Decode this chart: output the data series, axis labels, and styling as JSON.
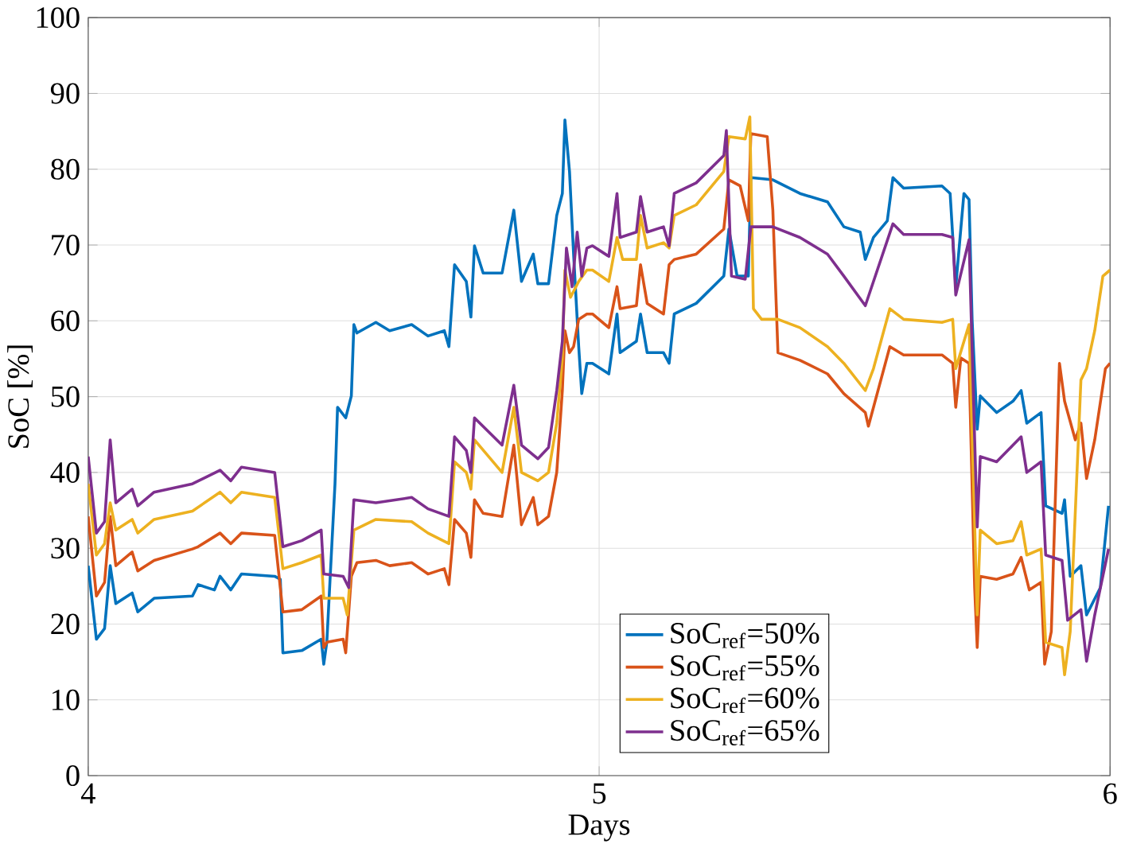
{
  "chart_data": {
    "type": "line",
    "xlabel": "Days",
    "ylabel": "SoC [%]",
    "xlim": [
      4,
      6
    ],
    "ylim": [
      0,
      100
    ],
    "xticks": [
      4,
      5,
      6
    ],
    "yticks": [
      0,
      10,
      20,
      30,
      40,
      50,
      60,
      70,
      80,
      90,
      100
    ],
    "grid": true,
    "legend": "bottom right",
    "line_style": "solid",
    "marker": "none",
    "series": [
      {
        "name": "SoC$_{ref}$=50%",
        "color": "#0072bd",
        "x": [
          4.0,
          4.016,
          4.032,
          4.043,
          4.054,
          4.086,
          4.097,
          4.129,
          4.204,
          4.215,
          4.247,
          4.258,
          4.279,
          4.3,
          4.365,
          4.376,
          4.381,
          4.418,
          4.456,
          4.461,
          4.467,
          4.483,
          4.488,
          4.504,
          4.515,
          4.52,
          4.526,
          4.563,
          4.59,
          4.633,
          4.665,
          4.697,
          4.706,
          4.717,
          4.74,
          4.749,
          4.756,
          4.773,
          4.81,
          4.833,
          4.848,
          4.871,
          4.88,
          4.901,
          4.917,
          4.928,
          4.933,
          4.942,
          4.95,
          4.96,
          4.966,
          4.976,
          4.987,
          5.019,
          5.035,
          5.041,
          5.073,
          5.081,
          5.094,
          5.126,
          5.137,
          5.147,
          5.19,
          5.244,
          5.254,
          5.27,
          5.292,
          5.297,
          5.34,
          5.393,
          5.447,
          5.479,
          5.511,
          5.521,
          5.537,
          5.564,
          5.575,
          5.596,
          5.671,
          5.687,
          5.698,
          5.714,
          5.724,
          5.73,
          5.74,
          5.746,
          5.778,
          5.81,
          5.826,
          5.837,
          5.865,
          5.874,
          5.906,
          5.911,
          5.922,
          5.943,
          5.954,
          5.981,
          5.997
        ],
        "values": [
          27.7,
          18.0,
          19.4,
          27.7,
          22.7,
          24.1,
          21.6,
          23.4,
          23.7,
          25.2,
          24.5,
          26.3,
          24.5,
          26.6,
          26.3,
          25.9,
          16.2,
          16.5,
          18.0,
          14.7,
          17.6,
          38.5,
          48.6,
          47.2,
          50.1,
          59.5,
          58.4,
          59.8,
          58.7,
          59.5,
          58.0,
          58.7,
          56.6,
          67.4,
          65.2,
          60.5,
          69.9,
          66.3,
          66.3,
          74.6,
          65.2,
          68.8,
          64.9,
          64.9,
          73.9,
          76.8,
          86.5,
          79.7,
          68.8,
          56.6,
          50.4,
          54.4,
          54.4,
          53.0,
          60.9,
          55.8,
          57.3,
          60.9,
          55.8,
          55.8,
          54.4,
          60.9,
          62.3,
          65.9,
          72.1,
          65.9,
          65.9,
          78.9,
          78.6,
          76.8,
          75.7,
          72.4,
          71.7,
          68.1,
          71.0,
          73.2,
          78.9,
          77.5,
          77.8,
          76.8,
          64.5,
          76.8,
          76.0,
          60.2,
          45.7,
          50.1,
          47.9,
          49.4,
          50.8,
          46.5,
          47.9,
          35.6,
          34.6,
          36.4,
          26.3,
          27.7,
          21.2,
          24.8,
          35.6
        ]
      },
      {
        "name": "SoC$_{ref}$=55%",
        "color": "#d95319",
        "x": [
          4.0,
          4.016,
          4.032,
          4.043,
          4.054,
          4.086,
          4.097,
          4.129,
          4.204,
          4.215,
          4.258,
          4.279,
          4.3,
          4.365,
          4.381,
          4.418,
          4.456,
          4.461,
          4.467,
          4.499,
          4.504,
          4.515,
          4.526,
          4.563,
          4.59,
          4.633,
          4.665,
          4.697,
          4.706,
          4.717,
          4.74,
          4.749,
          4.756,
          4.773,
          4.81,
          4.833,
          4.848,
          4.871,
          4.88,
          4.901,
          4.917,
          4.928,
          4.933,
          4.942,
          4.95,
          4.96,
          4.976,
          4.987,
          5.019,
          5.035,
          5.041,
          5.073,
          5.081,
          5.094,
          5.126,
          5.137,
          5.147,
          5.19,
          5.244,
          5.254,
          5.276,
          5.292,
          5.297,
          5.329,
          5.34,
          5.35,
          5.393,
          5.447,
          5.479,
          5.521,
          5.527,
          5.537,
          5.569,
          5.596,
          5.671,
          5.692,
          5.698,
          5.708,
          5.724,
          5.735,
          5.74,
          5.746,
          5.778,
          5.81,
          5.826,
          5.842,
          5.865,
          5.872,
          5.885,
          5.901,
          5.911,
          5.932,
          5.943,
          5.954,
          5.97,
          5.991,
          6.0
        ],
        "values": [
          34.2,
          23.7,
          25.5,
          34.2,
          27.7,
          29.5,
          27.0,
          28.4,
          29.9,
          30.2,
          32.0,
          30.6,
          32.0,
          31.7,
          21.6,
          21.9,
          23.7,
          16.9,
          17.6,
          18.0,
          16.2,
          26.3,
          28.1,
          28.4,
          27.7,
          28.1,
          26.6,
          27.3,
          25.2,
          33.8,
          32.0,
          28.8,
          36.4,
          34.6,
          34.2,
          43.6,
          33.1,
          36.7,
          33.1,
          34.2,
          40.0,
          50.8,
          58.7,
          55.8,
          56.6,
          60.2,
          60.9,
          60.9,
          59.1,
          64.5,
          61.6,
          62.0,
          67.4,
          62.3,
          60.9,
          67.4,
          68.1,
          68.8,
          72.1,
          78.6,
          77.8,
          73.2,
          84.7,
          84.3,
          74.6,
          55.8,
          54.8,
          53.0,
          50.4,
          47.9,
          46.1,
          48.6,
          56.6,
          55.5,
          55.5,
          54.4,
          48.6,
          55.1,
          54.4,
          24.8,
          16.9,
          26.3,
          25.9,
          26.6,
          28.8,
          24.5,
          25.5,
          14.7,
          19.0,
          54.4,
          49.4,
          44.3,
          46.5,
          39.2,
          44.3,
          53.7,
          54.4
        ]
      },
      {
        "name": "SoC$_{ref}$=60%",
        "color": "#edb120",
        "x": [
          4.0,
          4.016,
          4.032,
          4.043,
          4.054,
          4.086,
          4.097,
          4.129,
          4.204,
          4.258,
          4.279,
          4.3,
          4.365,
          4.381,
          4.418,
          4.456,
          4.461,
          4.499,
          4.507,
          4.52,
          4.563,
          4.633,
          4.665,
          4.706,
          4.717,
          4.74,
          4.749,
          4.756,
          4.81,
          4.833,
          4.848,
          4.88,
          4.901,
          4.917,
          4.928,
          4.933,
          4.944,
          4.96,
          4.976,
          4.987,
          5.019,
          5.035,
          5.046,
          5.073,
          5.081,
          5.094,
          5.126,
          5.137,
          5.147,
          5.19,
          5.244,
          5.254,
          5.286,
          5.295,
          5.302,
          5.318,
          5.35,
          5.393,
          5.447,
          5.479,
          5.521,
          5.537,
          5.569,
          5.596,
          5.671,
          5.692,
          5.698,
          5.724,
          5.74,
          5.746,
          5.778,
          5.81,
          5.826,
          5.837,
          5.865,
          5.874,
          5.906,
          5.911,
          5.922,
          5.943,
          5.954,
          5.97,
          5.986,
          6.0
        ],
        "values": [
          38.5,
          29.1,
          30.6,
          36.0,
          32.4,
          33.8,
          32.0,
          33.8,
          34.9,
          37.4,
          36.0,
          37.4,
          36.7,
          27.3,
          28.1,
          29.1,
          23.4,
          23.4,
          21.2,
          32.4,
          33.8,
          33.5,
          32.0,
          30.6,
          41.4,
          40.0,
          37.8,
          44.3,
          40.0,
          48.6,
          40.0,
          38.9,
          40.0,
          46.5,
          55.1,
          66.7,
          63.1,
          65.2,
          66.7,
          66.7,
          65.2,
          71.0,
          68.1,
          68.1,
          73.9,
          69.6,
          70.3,
          69.6,
          73.9,
          75.3,
          79.7,
          84.3,
          84.0,
          86.9,
          61.6,
          60.2,
          60.2,
          59.1,
          56.6,
          54.4,
          50.8,
          53.7,
          61.6,
          60.2,
          59.8,
          60.2,
          53.7,
          59.5,
          21.2,
          32.4,
          30.6,
          31.0,
          33.5,
          29.1,
          29.9,
          17.6,
          16.9,
          13.3,
          19.0,
          52.2,
          53.7,
          58.7,
          65.9,
          66.7
        ]
      },
      {
        "name": "SoC$_{ref}$=65%",
        "color": "#7e2f8e",
        "x": [
          4.0,
          4.016,
          4.032,
          4.043,
          4.054,
          4.086,
          4.097,
          4.129,
          4.204,
          4.258,
          4.279,
          4.3,
          4.365,
          4.381,
          4.418,
          4.456,
          4.461,
          4.499,
          4.51,
          4.52,
          4.563,
          4.633,
          4.665,
          4.706,
          4.717,
          4.74,
          4.749,
          4.756,
          4.81,
          4.833,
          4.848,
          4.88,
          4.901,
          4.917,
          4.928,
          4.936,
          4.947,
          4.957,
          4.966,
          4.976,
          4.987,
          5.019,
          5.035,
          5.041,
          5.073,
          5.081,
          5.094,
          5.126,
          5.137,
          5.147,
          5.19,
          5.244,
          5.249,
          5.259,
          5.286,
          5.297,
          5.34,
          5.393,
          5.447,
          5.479,
          5.521,
          5.537,
          5.575,
          5.596,
          5.671,
          5.692,
          5.698,
          5.724,
          5.735,
          5.74,
          5.746,
          5.778,
          5.81,
          5.826,
          5.837,
          5.865,
          5.874,
          5.906,
          5.917,
          5.943,
          5.954,
          5.97,
          5.997
        ],
        "values": [
          42.1,
          32.0,
          33.5,
          44.3,
          36.0,
          37.8,
          35.6,
          37.4,
          38.5,
          40.3,
          38.9,
          40.7,
          40.0,
          30.2,
          31.0,
          32.4,
          26.6,
          26.3,
          24.8,
          36.4,
          36.0,
          36.7,
          35.2,
          34.2,
          44.7,
          42.9,
          40.0,
          47.2,
          43.6,
          51.5,
          43.6,
          41.8,
          43.3,
          50.8,
          57.3,
          69.6,
          64.5,
          71.7,
          65.9,
          69.6,
          69.9,
          68.5,
          76.8,
          71.0,
          71.7,
          76.4,
          71.7,
          72.4,
          69.9,
          76.8,
          78.2,
          81.8,
          85.1,
          65.9,
          65.5,
          72.4,
          72.4,
          71.0,
          68.8,
          65.9,
          62.0,
          65.2,
          72.8,
          71.4,
          71.4,
          71.0,
          63.4,
          70.7,
          44.3,
          32.8,
          42.1,
          41.4,
          43.6,
          44.7,
          40.0,
          41.4,
          29.1,
          28.4,
          20.5,
          21.9,
          15.1,
          21.2,
          29.9
        ]
      }
    ]
  }
}
